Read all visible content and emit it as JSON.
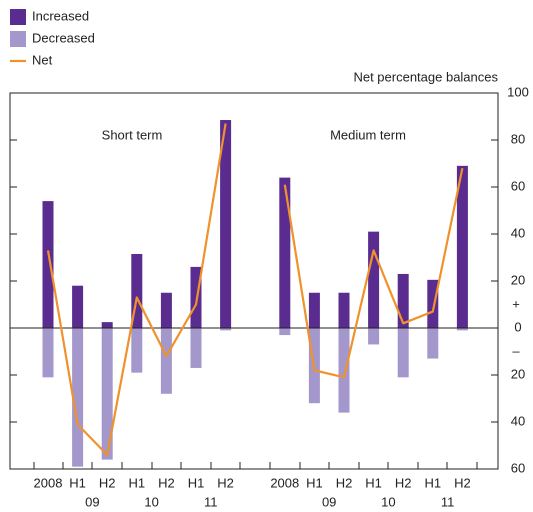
{
  "chart_data": {
    "type": "bar",
    "y_axis_label": "Net percentage balances",
    "panel_labels": [
      "Short term",
      "Medium term"
    ],
    "sign_labels": [
      "+",
      "–"
    ],
    "categories": [
      "2008",
      "H1",
      "H2",
      "H1",
      "H2",
      "H1",
      "H2",
      null,
      "2008",
      "H1",
      "H2",
      "H1",
      "H2",
      "H1",
      "H2"
    ],
    "year_labels": [
      "09",
      "10",
      "11",
      "09",
      "10",
      "11"
    ],
    "series": [
      {
        "name": "Increased",
        "type": "bar",
        "color": "#5b2c8f",
        "values": [
          54,
          18,
          2.5,
          31.5,
          15,
          26,
          88.5,
          null,
          64,
          15,
          15,
          41,
          23,
          20.5,
          69
        ]
      },
      {
        "name": "Decreased",
        "type": "bar",
        "color": "#a497cb",
        "values": [
          -21,
          -59,
          -56,
          -19,
          -28,
          -17,
          -1,
          null,
          -3,
          -32,
          -36,
          -7,
          -21,
          -13,
          -1
        ]
      },
      {
        "name": "Net",
        "type": "line",
        "color": "#f0922b",
        "values": [
          33,
          -41,
          -54,
          13,
          -12,
          10,
          87,
          null,
          61,
          -18,
          -21,
          33,
          2,
          7,
          68
        ]
      }
    ],
    "ylim": [
      -60,
      100
    ],
    "yticks": [
      {
        "value": -60,
        "label": "60"
      },
      {
        "value": -40,
        "label": "40"
      },
      {
        "value": -20,
        "label": "20"
      },
      0,
      20,
      40,
      60,
      80,
      100
    ],
    "legend": "top-left"
  }
}
